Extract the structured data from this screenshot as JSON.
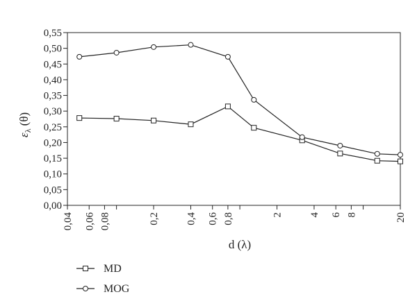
{
  "chart_data": {
    "type": "line",
    "title": "",
    "xlabel": "d (λ)",
    "ylabel_main": "ε",
    "ylabel_sub": "λ",
    "ylabel_rest": " (θ)",
    "x_scale": "log",
    "xlim": [
      0.04,
      20
    ],
    "ylim": [
      0,
      0.55
    ],
    "x_ticks": [
      0.04,
      0.06,
      0.08,
      0.2,
      0.4,
      0.6,
      0.8,
      2,
      4,
      6,
      8,
      20
    ],
    "x_tick_labels": [
      "0,04",
      "0,06",
      "0,08",
      "0,2",
      "0,4",
      "0,6",
      "0,8",
      "2",
      "4",
      "6",
      "8",
      "20"
    ],
    "x_minor_ticks": [
      0.1,
      1,
      10
    ],
    "y_ticks": [
      0,
      0.05,
      0.1,
      0.15,
      0.2,
      0.25,
      0.3,
      0.35,
      0.4,
      0.45,
      0.5,
      0.55
    ],
    "y_tick_labels": [
      "0,00",
      "0,05",
      "0,10",
      "0,15",
      "0,20",
      "0,25",
      "0,30",
      "0,35",
      "0,40",
      "0,45",
      "0,50",
      "0,55"
    ],
    "grid": false,
    "legend_position": "bottom-left",
    "series": [
      {
        "name": "MD",
        "marker": "square",
        "x": [
          0.05,
          0.1,
          0.2,
          0.4,
          0.8,
          1.3,
          3.2,
          6.5,
          13,
          20
        ],
        "y": [
          0.278,
          0.276,
          0.27,
          0.258,
          0.315,
          0.247,
          0.207,
          0.165,
          0.142,
          0.14
        ]
      },
      {
        "name": "MOG",
        "marker": "circle",
        "x": [
          0.05,
          0.1,
          0.2,
          0.4,
          0.8,
          1.3,
          3.2,
          6.5,
          13,
          20
        ],
        "y": [
          0.473,
          0.486,
          0.504,
          0.511,
          0.473,
          0.336,
          0.217,
          0.19,
          0.164,
          0.161
        ]
      }
    ]
  }
}
